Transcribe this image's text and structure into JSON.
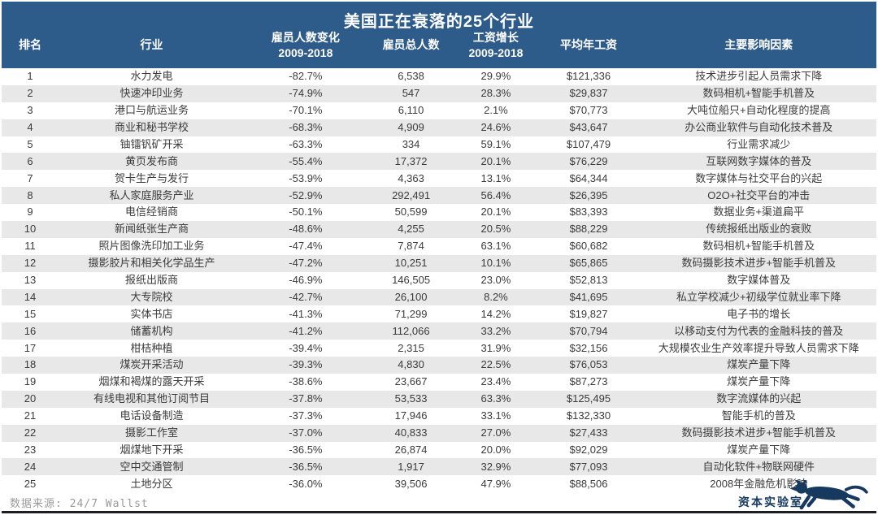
{
  "chart_data": {
    "type": "table",
    "title": "美国正在衰落的25个行业",
    "columns": [
      {
        "label": "排名",
        "sub": ""
      },
      {
        "label": "行业",
        "sub": ""
      },
      {
        "label": "雇员人数变化",
        "sub": "2009-2018"
      },
      {
        "label": "雇员总人数",
        "sub": ""
      },
      {
        "label": "工资增长",
        "sub": "2009-2018"
      },
      {
        "label": "平均年工资",
        "sub": ""
      },
      {
        "label": "主要影响因素",
        "sub": ""
      }
    ],
    "rows": [
      {
        "rank": "1",
        "industry": "水力发电",
        "employee_change": "-82.7%",
        "total_employees": "6,538",
        "wage_growth": "29.9%",
        "avg_wage": "$121,336",
        "factor": "技术进步引起人员需求下降"
      },
      {
        "rank": "2",
        "industry": "快速冲印业务",
        "employee_change": "-74.9%",
        "total_employees": "547",
        "wage_growth": "28.3%",
        "avg_wage": "$29,837",
        "factor": "数码相机+智能手机普及"
      },
      {
        "rank": "3",
        "industry": "港口与航运业务",
        "employee_change": "-70.1%",
        "total_employees": "6,110",
        "wage_growth": "2.1%",
        "avg_wage": "$70,773",
        "factor": "大吨位船只+自动化程度的提高"
      },
      {
        "rank": "4",
        "industry": "商业和秘书学校",
        "employee_change": "-68.3%",
        "total_employees": "4,909",
        "wage_growth": "24.6%",
        "avg_wage": "$43,647",
        "factor": "办公商业软件与自动化技术普及"
      },
      {
        "rank": "5",
        "industry": "铀镭钒矿开采",
        "employee_change": "-63.3%",
        "total_employees": "334",
        "wage_growth": "59.1%",
        "avg_wage": "$107,479",
        "factor": "行业需求减少"
      },
      {
        "rank": "6",
        "industry": "黄页发布商",
        "employee_change": "-55.4%",
        "total_employees": "17,372",
        "wage_growth": "20.1%",
        "avg_wage": "$76,229",
        "factor": "互联网数字媒体的普及"
      },
      {
        "rank": "7",
        "industry": "贺卡生产与发行",
        "employee_change": "-53.9%",
        "total_employees": "4,363",
        "wage_growth": "13.1%",
        "avg_wage": "$64,344",
        "factor": "数字媒体与社交平台的兴起"
      },
      {
        "rank": "8",
        "industry": "私人家庭服务产业",
        "employee_change": "-52.9%",
        "total_employees": "292,491",
        "wage_growth": "56.4%",
        "avg_wage": "$26,395",
        "factor": "O2O+社交平台的冲击"
      },
      {
        "rank": "9",
        "industry": "电信经销商",
        "employee_change": "-50.1%",
        "total_employees": "50,599",
        "wage_growth": "20.1%",
        "avg_wage": "$83,393",
        "factor": "数据业务+渠道扁平"
      },
      {
        "rank": "10",
        "industry": "新闻纸张生产商",
        "employee_change": "-48.6%",
        "total_employees": "4,255",
        "wage_growth": "20.5%",
        "avg_wage": "$88,229",
        "factor": "传统报纸出版业的衰败"
      },
      {
        "rank": "11",
        "industry": "照片图像洗印加工业务",
        "employee_change": "-47.4%",
        "total_employees": "7,874",
        "wage_growth": "63.1%",
        "avg_wage": "$60,682",
        "factor": "数码相机+智能手机普及"
      },
      {
        "rank": "12",
        "industry": "摄影胶片和相关化学品生产",
        "employee_change": "-47.2%",
        "total_employees": "10,251",
        "wage_growth": "10.1%",
        "avg_wage": "$65,865",
        "factor": "数码摄影技术进步+智能手机普及"
      },
      {
        "rank": "13",
        "industry": "报纸出版商",
        "employee_change": "-46.9%",
        "total_employees": "146,505",
        "wage_growth": "23.0%",
        "avg_wage": "$52,813",
        "factor": "数字媒体普及"
      },
      {
        "rank": "14",
        "industry": "大专院校",
        "employee_change": "-42.7%",
        "total_employees": "26,100",
        "wage_growth": "8.2%",
        "avg_wage": "$41,695",
        "factor": "私立学校减少+初级学位就业率下降"
      },
      {
        "rank": "15",
        "industry": "实体书店",
        "employee_change": "-41.3%",
        "total_employees": "71,299",
        "wage_growth": "14.2%",
        "avg_wage": "$19,827",
        "factor": "电子书的增长"
      },
      {
        "rank": "16",
        "industry": "储蓄机构",
        "employee_change": "-41.2%",
        "total_employees": "112,066",
        "wage_growth": "33.2%",
        "avg_wage": "$70,794",
        "factor": "以移动支付为代表的金融科技的普及"
      },
      {
        "rank": "17",
        "industry": "柑桔种植",
        "employee_change": "-39.4%",
        "total_employees": "2,315",
        "wage_growth": "31.9%",
        "avg_wage": "$32,156",
        "factor": "大规模农业生产效率提升导致人员需求下降"
      },
      {
        "rank": "18",
        "industry": "煤炭开采活动",
        "employee_change": "-39.3%",
        "total_employees": "4,830",
        "wage_growth": "22.5%",
        "avg_wage": "$76,053",
        "factor": "煤炭产量下降"
      },
      {
        "rank": "19",
        "industry": "烟煤和褐煤的露天开采",
        "employee_change": "-38.6%",
        "total_employees": "23,667",
        "wage_growth": "23.4%",
        "avg_wage": "$87,273",
        "factor": "煤炭产量下降"
      },
      {
        "rank": "20",
        "industry": "有线电视和其他订阅节目",
        "employee_change": "-37.8%",
        "total_employees": "53,533",
        "wage_growth": "63.3%",
        "avg_wage": "$125,495",
        "factor": "数字流媒体的兴起"
      },
      {
        "rank": "21",
        "industry": "电话设备制造",
        "employee_change": "-37.3%",
        "total_employees": "17,946",
        "wage_growth": "33.1%",
        "avg_wage": "$132,330",
        "factor": "智能手机的普及"
      },
      {
        "rank": "22",
        "industry": "摄影工作室",
        "employee_change": "-37.0%",
        "total_employees": "40,833",
        "wage_growth": "27.0%",
        "avg_wage": "$27,433",
        "factor": "数码摄影技术进步+智能手机普及"
      },
      {
        "rank": "23",
        "industry": "烟煤地下开采",
        "employee_change": "-36.5%",
        "total_employees": "26,874",
        "wage_growth": "20.0%",
        "avg_wage": "$92,029",
        "factor": "煤炭产量下降"
      },
      {
        "rank": "24",
        "industry": "空中交通管制",
        "employee_change": "-36.5%",
        "total_employees": "1,917",
        "wage_growth": "32.9%",
        "avg_wage": "$77,093",
        "factor": "自动化软件+物联网硬件"
      },
      {
        "rank": "25",
        "industry": "土地分区",
        "employee_change": "-36.0%",
        "total_employees": "39,506",
        "wage_growth": "47.9%",
        "avg_wage": "$88,506",
        "factor": "2008年金融危机影响"
      }
    ],
    "layout": {
      "striped": true,
      "stripe_on": "even-rows",
      "header_position": "top"
    }
  },
  "footer": {
    "source": "数据来源: 24/7 Wallst",
    "logo_text": "资本实验室"
  },
  "colors": {
    "header_bg": "#2e5c8a",
    "header_text": "#ffffff",
    "stripe": "#e8e8e8",
    "body_text": "#3b3b3b",
    "source_gray": "#9a9a9a",
    "logo_navy": "#16395f",
    "bottom_rule": "#1b1e24"
  }
}
